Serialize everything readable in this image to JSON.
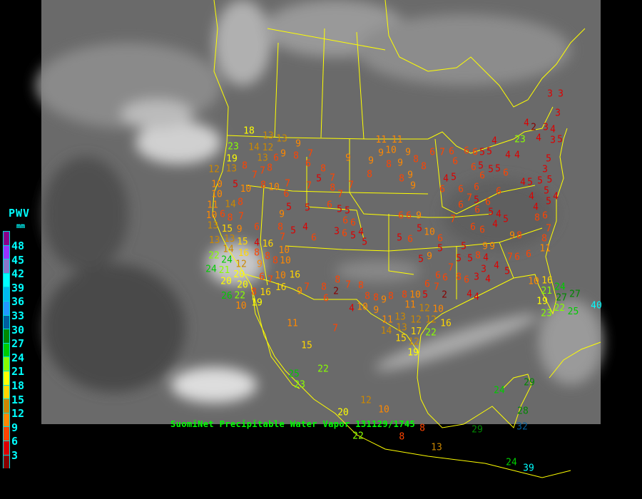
{
  "title": "SuomiNet Precipitable Water Vapor 131129/1745",
  "legend": {
    "title": "PWV",
    "unit": "mm",
    "labels": [
      "48",
      "45",
      "42",
      "39",
      "36",
      "33",
      "30",
      "27",
      "24",
      "21",
      "18",
      "15",
      "12",
      "9",
      "6",
      "3"
    ],
    "colors": [
      "#8b008b",
      "#9933ff",
      "#8877cc",
      "#00ffff",
      "#00bbee",
      "#2299ff",
      "#005f9f",
      "#008800",
      "#00cc00",
      "#88ff00",
      "#ffff00",
      "#ffd700",
      "#cc8800",
      "#ff8800",
      "#ff4400",
      "#dd0000",
      "#880000"
    ]
  },
  "map": {
    "boundary_color": "#ffff00",
    "background": "infrared satellite grayscale"
  },
  "stations": [
    3,
    3,
    3,
    4,
    2,
    3,
    4,
    3,
    5,
    23,
    4,
    4,
    4,
    4,
    5,
    3,
    5,
    4,
    5,
    5,
    5,
    4,
    4,
    5,
    4,
    8,
    6,
    7,
    8,
    11,
    9,
    8,
    6,
    7,
    6,
    9,
    9,
    8,
    4,
    3,
    4,
    3,
    4,
    5,
    10,
    16,
    21,
    24,
    19,
    27,
    22,
    23,
    27,
    40,
    25,
    6,
    7,
    6,
    6,
    6,
    6,
    5,
    5,
    5,
    6,
    5,
    5,
    6,
    6,
    6,
    6,
    4,
    5,
    6,
    6,
    7,
    6,
    5,
    6,
    6,
    5,
    4,
    4,
    5,
    6,
    6,
    7,
    10,
    6,
    5,
    5,
    5,
    5,
    7,
    6,
    6,
    8,
    6,
    7,
    5,
    2,
    4,
    4,
    6,
    5,
    9,
    5,
    6,
    5,
    9,
    6,
    6,
    8,
    8,
    9,
    10,
    9,
    9,
    8,
    8,
    9,
    9,
    9,
    9,
    8,
    11,
    11,
    9,
    8,
    7,
    6,
    6,
    8,
    5,
    7,
    8,
    7,
    7,
    7,
    7,
    10,
    6,
    7,
    8,
    7,
    8,
    8,
    5,
    6,
    5,
    5,
    6,
    6,
    6,
    5,
    3,
    4,
    5,
    4,
    5,
    6,
    5,
    9,
    8,
    7,
    8,
    8,
    9,
    6,
    10,
    8,
    6,
    6,
    4,
    7,
    8,
    8,
    7,
    9,
    7,
    8,
    2,
    7,
    8,
    6,
    8,
    8,
    9,
    8,
    8,
    10,
    8,
    10,
    4,
    7,
    11,
    15,
    22,
    25,
    23,
    12,
    10,
    20,
    22,
    8,
    8,
    13,
    29,
    24,
    29,
    28,
    32,
    24,
    39,
    11,
    13,
    13,
    12,
    11,
    12,
    10,
    12,
    14,
    17,
    12,
    22,
    15,
    19,
    16,
    9,
    18,
    13,
    13,
    14,
    13,
    12,
    9,
    23,
    19,
    13,
    12,
    5,
    10,
    10,
    11,
    10,
    10,
    13,
    14,
    8,
    15,
    9,
    13,
    13,
    15,
    14,
    16,
    12,
    24,
    21,
    20,
    22,
    20,
    20,
    22,
    24,
    26,
    16,
    16,
    16,
    10,
    10,
    16,
    19,
    10
  ]
}
